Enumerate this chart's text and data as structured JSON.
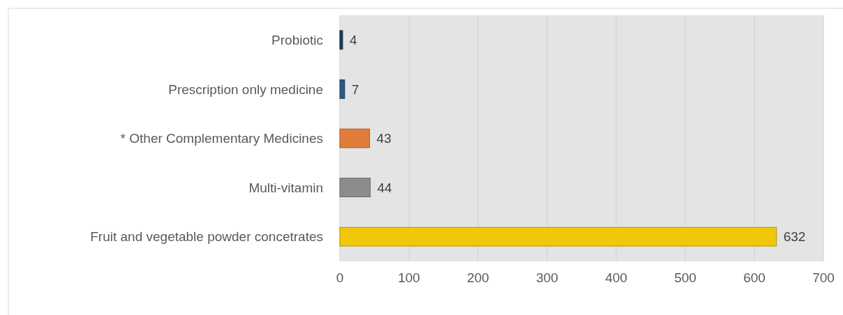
{
  "chart_data": {
    "type": "bar",
    "orientation": "horizontal",
    "categories": [
      "Probiotic",
      "Prescription only medicine",
      "* Other Complementary Medicines",
      "Multi-vitamin",
      "Fruit and vegetable powder concetrates"
    ],
    "values": [
      4,
      7,
      43,
      44,
      632
    ],
    "colors": [
      "#1f3a5c",
      "#2c5a85",
      "#e07b39",
      "#8c8c8c",
      "#f0c808"
    ],
    "xlim": [
      0,
      700
    ],
    "xticks": [
      0,
      100,
      200,
      300,
      400,
      500,
      600,
      700
    ],
    "grid": "x",
    "data_labels": true
  }
}
